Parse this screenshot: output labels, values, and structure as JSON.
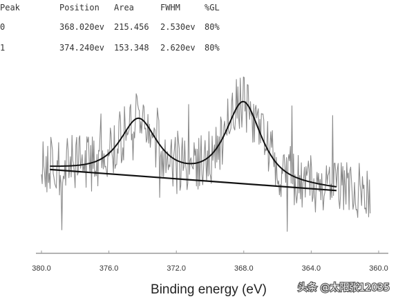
{
  "chart_data": {
    "type": "line",
    "title": "",
    "xlabel": "Binding energy (eV)",
    "ylabel": "",
    "xlim": [
      380.0,
      360.0
    ],
    "x_reversed": true,
    "x_ticks": [
      "380.0",
      "376.0",
      "372.0",
      "368.0",
      "364.0",
      "360.0"
    ],
    "grid": false,
    "peak_table": {
      "headers": [
        "Peak",
        "Position",
        "Area",
        "FWHM",
        "%GL"
      ],
      "rows": [
        [
          "0",
          "368.020ev",
          "215.456",
          "2.530ev",
          "80%"
        ],
        [
          "1",
          "374.240ev",
          "153.348",
          "2.620ev",
          "80%"
        ]
      ]
    },
    "series": [
      {
        "style": "noisy-raw-spectrum",
        "x_range": [
          380.0,
          360.5
        ]
      },
      {
        "style": "fitted-envelope",
        "baseline": {
          "x": [
            379.5,
            362.5
          ],
          "y": [
            0.29,
            0.13
          ]
        },
        "peaks": [
          {
            "center": 368.02,
            "fwhm": 2.53,
            "height": 0.61
          },
          {
            "center": 374.24,
            "fwhm": 2.62,
            "height": 0.42
          }
        ]
      }
    ],
    "colors": {
      "raw": "#8a8a8a",
      "fit": "#111111",
      "axis": "#9a9a9a"
    }
  },
  "watermark": "头条 @太阳张12035"
}
